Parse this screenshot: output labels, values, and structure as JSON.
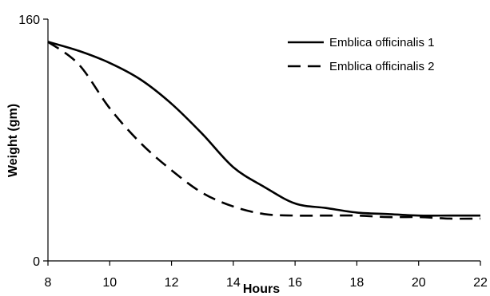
{
  "chart_data": {
    "type": "line",
    "title": "",
    "xlabel": "Hours",
    "ylabel": "Weight (gm)",
    "xlim": [
      8,
      22
    ],
    "ylim": [
      0,
      160
    ],
    "x_ticks": [
      8,
      10,
      12,
      14,
      16,
      18,
      20,
      22
    ],
    "y_ticks": [
      0,
      160
    ],
    "grid": false,
    "legend_position": "top-right",
    "series": [
      {
        "name": "Emblica officinalis 1",
        "style": "solid",
        "color": "#000000",
        "x": [
          8,
          9,
          10,
          11,
          12,
          13,
          14,
          15,
          16,
          17,
          18,
          19,
          20,
          21,
          22
        ],
        "y": [
          145,
          139,
          131,
          120,
          104,
          84,
          62,
          49,
          38,
          35,
          32,
          31,
          30,
          30,
          30
        ]
      },
      {
        "name": "Emblica officinalis 2",
        "style": "dashed",
        "color": "#000000",
        "x": [
          8,
          9,
          10,
          11,
          12,
          13,
          14,
          15,
          16,
          17,
          18,
          19,
          20,
          21,
          22
        ],
        "y": [
          145,
          130,
          101,
          78,
          60,
          45,
          36,
          31,
          30,
          30,
          30,
          29,
          29,
          28,
          28
        ]
      }
    ]
  }
}
